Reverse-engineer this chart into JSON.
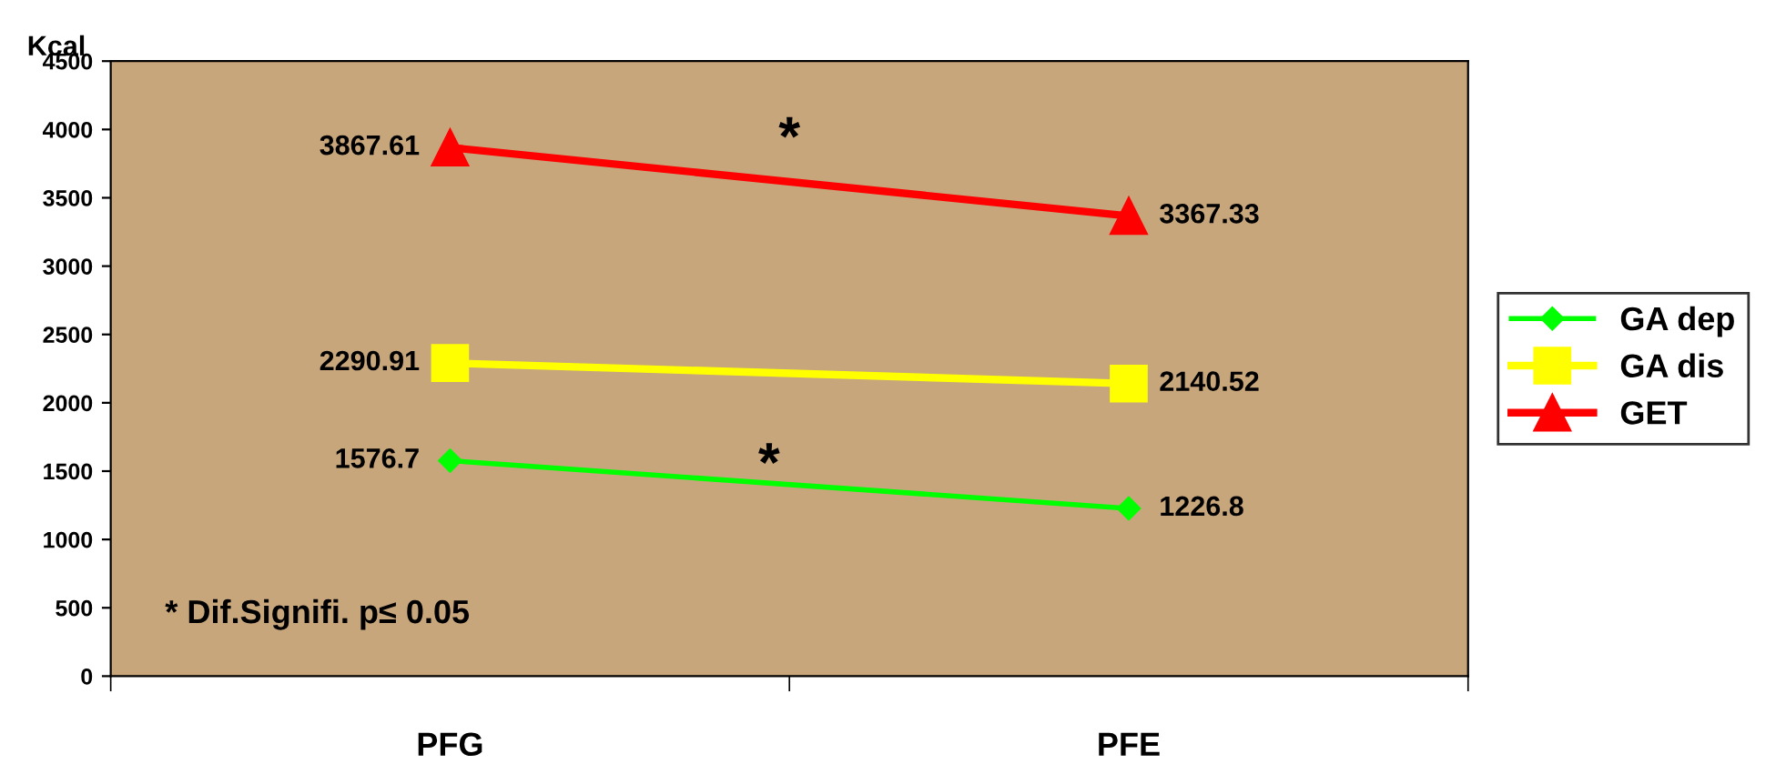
{
  "chart_data": {
    "type": "line",
    "ylabel": "Kcal",
    "categories": [
      "PFG",
      "PFE"
    ],
    "series": [
      {
        "name": "GA dep",
        "color": "#00ff00",
        "marker": "diamond",
        "values": [
          1576.7,
          1226.8
        ]
      },
      {
        "name": "GA dis",
        "color": "#ffff00",
        "marker": "square",
        "values": [
          2290.91,
          2140.52
        ]
      },
      {
        "name": "GET",
        "color": "#ff0000",
        "marker": "triangle",
        "values": [
          3867.61,
          3367.33
        ]
      }
    ],
    "ylim": [
      0,
      4500
    ],
    "yticks": [
      0,
      500,
      1000,
      1500,
      2000,
      2500,
      3000,
      3500,
      4000,
      4500
    ],
    "data_labels": true,
    "legend": "right",
    "grid": false,
    "line_style": "solid",
    "annotations": [
      "*",
      "*",
      "* Dif.Signifi. p≤ 0.05"
    ]
  }
}
